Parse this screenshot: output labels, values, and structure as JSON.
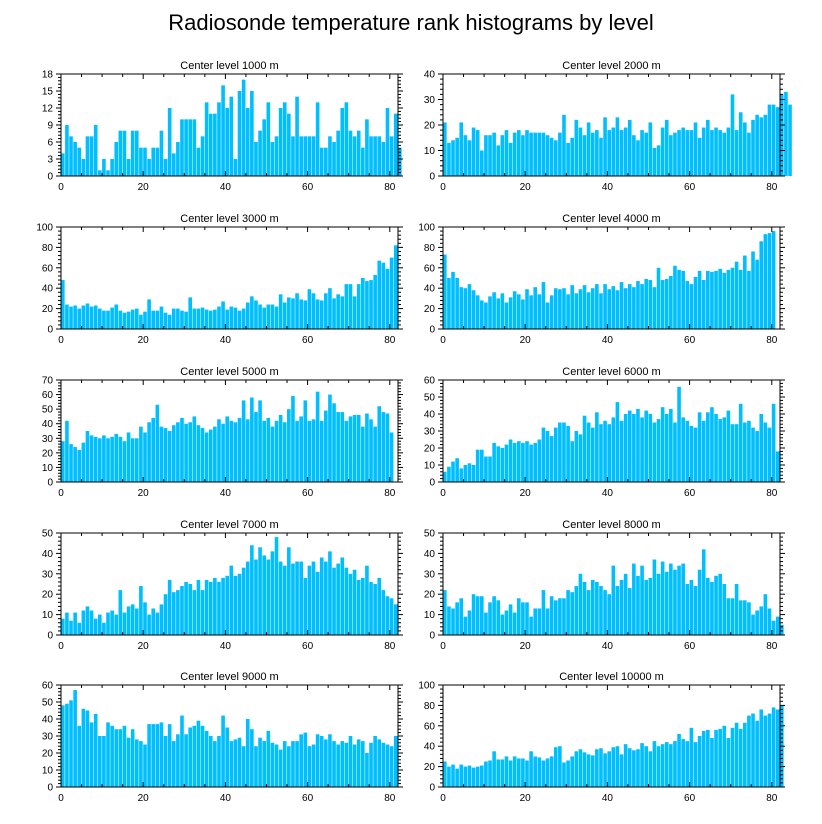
{
  "title": "Radiosonde temperature rank histograms by level",
  "bar_color": "#00BFFF",
  "chart_data": [
    {
      "type": "bar",
      "title": "Center level 1000 m",
      "xlim": [
        0,
        82
      ],
      "xticks": [
        0,
        20,
        40,
        60,
        80
      ],
      "ylim": [
        0,
        18
      ],
      "yticks": [
        0,
        3,
        6,
        9,
        12,
        15,
        18
      ],
      "values": [
        4,
        9,
        7,
        6,
        5,
        3,
        7,
        7,
        9,
        1,
        3,
        1,
        3,
        6,
        8,
        8,
        3,
        8,
        8,
        5,
        5,
        3,
        5,
        5,
        8,
        3,
        12,
        4,
        6,
        10,
        10,
        10,
        10,
        5,
        7,
        13,
        11,
        11,
        13,
        16,
        12,
        14,
        3,
        15,
        17,
        12,
        15,
        6,
        8,
        10,
        13,
        6,
        7,
        12,
        13,
        11,
        7,
        14,
        7,
        7,
        7,
        7,
        13,
        5,
        5,
        7,
        6,
        8,
        12,
        13,
        8,
        7,
        8,
        5,
        10,
        7,
        7,
        7,
        6,
        12,
        7,
        11,
        5
      ]
    },
    {
      "type": "bar",
      "title": "Center level 2000 m",
      "xlim": [
        0,
        82
      ],
      "xticks": [
        0,
        20,
        40,
        60,
        80
      ],
      "ylim": [
        0,
        40
      ],
      "yticks": [
        0,
        10,
        20,
        30,
        40
      ],
      "values": [
        21,
        13,
        14,
        15,
        21,
        16,
        14,
        19,
        18,
        10,
        16,
        16,
        17,
        12,
        16,
        18,
        13,
        17,
        18,
        16,
        18,
        17,
        17,
        17,
        17,
        16,
        15,
        14,
        17,
        24,
        13,
        15,
        22,
        19,
        16,
        21,
        17,
        18,
        15,
        23,
        18,
        19,
        23,
        18,
        19,
        22,
        16,
        14,
        18,
        17,
        21,
        11,
        12,
        19,
        22,
        16,
        17,
        18,
        19,
        18,
        18,
        21,
        15,
        19,
        22,
        18,
        19,
        18,
        17,
        19,
        32,
        18,
        25,
        21,
        17,
        22,
        24,
        23,
        24,
        28,
        28,
        27,
        32,
        33,
        28
      ]
    },
    {
      "type": "bar",
      "title": "Center level 3000 m",
      "xlim": [
        0,
        82
      ],
      "xticks": [
        0,
        20,
        40,
        60,
        80
      ],
      "ylim": [
        0,
        100
      ],
      "yticks": [
        0,
        20,
        40,
        60,
        80,
        100
      ],
      "values": [
        48,
        24,
        22,
        23,
        20,
        23,
        25,
        22,
        23,
        20,
        18,
        18,
        21,
        24,
        18,
        16,
        17,
        19,
        20,
        14,
        17,
        29,
        18,
        18,
        22,
        16,
        14,
        20,
        20,
        18,
        17,
        31,
        20,
        20,
        21,
        19,
        18,
        19,
        22,
        27,
        19,
        22,
        21,
        18,
        20,
        26,
        32,
        28,
        24,
        21,
        24,
        24,
        22,
        34,
        26,
        31,
        30,
        35,
        29,
        28,
        39,
        35,
        29,
        28,
        35,
        40,
        30,
        34,
        32,
        44,
        44,
        32,
        44,
        50,
        47,
        48,
        53,
        67,
        65,
        59,
        70,
        82
      ]
    },
    {
      "type": "bar",
      "title": "Center level 4000 m",
      "xlim": [
        0,
        82
      ],
      "xticks": [
        0,
        20,
        40,
        60,
        80
      ],
      "ylim": [
        0,
        100
      ],
      "yticks": [
        0,
        20,
        40,
        60,
        80,
        100
      ],
      "values": [
        73,
        50,
        56,
        50,
        41,
        40,
        44,
        38,
        33,
        28,
        26,
        32,
        36,
        30,
        35,
        26,
        31,
        37,
        34,
        29,
        39,
        33,
        41,
        34,
        46,
        26,
        33,
        40,
        39,
        40,
        34,
        43,
        35,
        39,
        43,
        36,
        40,
        44,
        35,
        44,
        39,
        42,
        38,
        46,
        40,
        44,
        41,
        47,
        44,
        49,
        48,
        41,
        60,
        48,
        49,
        52,
        62,
        58,
        57,
        47,
        44,
        51,
        57,
        48,
        57,
        56,
        57,
        59,
        55,
        58,
        60,
        66,
        58,
        72,
        57,
        76,
        68,
        86,
        93,
        94,
        96
      ]
    },
    {
      "type": "bar",
      "title": "Center level 5000 m",
      "xlim": [
        0,
        82
      ],
      "xticks": [
        0,
        20,
        40,
        60,
        80
      ],
      "ylim": [
        0,
        70
      ],
      "yticks": [
        0,
        10,
        20,
        30,
        40,
        50,
        60,
        70
      ],
      "values": [
        28,
        42,
        26,
        24,
        22,
        27,
        35,
        32,
        31,
        30,
        32,
        30,
        31,
        33,
        31,
        28,
        34,
        30,
        30,
        38,
        34,
        41,
        44,
        53,
        38,
        37,
        35,
        39,
        41,
        44,
        40,
        41,
        45,
        39,
        37,
        34,
        36,
        38,
        43,
        40,
        45,
        42,
        41,
        44,
        56,
        43,
        58,
        48,
        56,
        42,
        44,
        38,
        42,
        46,
        41,
        50,
        59,
        42,
        45,
        56,
        42,
        43,
        62,
        42,
        49,
        60,
        54,
        48,
        48,
        42,
        45,
        46,
        46,
        38,
        47,
        43,
        38,
        52,
        48,
        47,
        34
      ]
    },
    {
      "type": "bar",
      "title": "Center level 6000 m",
      "xlim": [
        0,
        82
      ],
      "xticks": [
        0,
        20,
        40,
        60,
        80
      ],
      "ylim": [
        0,
        60
      ],
      "yticks": [
        0,
        10,
        20,
        30,
        40,
        50,
        60
      ],
      "values": [
        6,
        9,
        12,
        14,
        8,
        10,
        11,
        10,
        19,
        19,
        15,
        15,
        23,
        21,
        20,
        22,
        25,
        23,
        24,
        23,
        24,
        22,
        23,
        25,
        32,
        30,
        27,
        32,
        35,
        35,
        33,
        24,
        30,
        28,
        39,
        35,
        32,
        41,
        34,
        36,
        34,
        38,
        47,
        36,
        40,
        42,
        40,
        43,
        38,
        42,
        40,
        35,
        37,
        44,
        40,
        43,
        35,
        56,
        38,
        36,
        33,
        32,
        41,
        36,
        41,
        44,
        40,
        37,
        38,
        42,
        34,
        34,
        46,
        35,
        36,
        32,
        30,
        40,
        35,
        32,
        46,
        18
      ]
    },
    {
      "type": "bar",
      "title": "Center level 7000 m",
      "xlim": [
        0,
        82
      ],
      "xticks": [
        0,
        20,
        40,
        60,
        80
      ],
      "ylim": [
        0,
        50
      ],
      "yticks": [
        0,
        10,
        20,
        30,
        40,
        50
      ],
      "values": [
        8,
        11,
        7,
        11,
        6,
        12,
        14,
        12,
        8,
        10,
        6,
        11,
        12,
        10,
        22,
        11,
        14,
        15,
        13,
        24,
        16,
        10,
        13,
        11,
        15,
        20,
        27,
        21,
        22,
        24,
        26,
        25,
        22,
        27,
        22,
        27,
        26,
        28,
        26,
        28,
        29,
        34,
        29,
        30,
        33,
        36,
        44,
        37,
        43,
        39,
        37,
        41,
        48,
        36,
        34,
        43,
        35,
        36,
        36,
        28,
        34,
        36,
        31,
        38,
        36,
        41,
        33,
        35,
        38,
        33,
        30,
        32,
        27,
        28,
        34,
        26,
        25,
        28,
        22,
        19,
        18,
        15
      ]
    },
    {
      "type": "bar",
      "title": "Center level 8000 m",
      "xlim": [
        0,
        82
      ],
      "xticks": [
        0,
        20,
        40,
        60,
        80
      ],
      "ylim": [
        0,
        50
      ],
      "yticks": [
        0,
        10,
        20,
        30,
        40,
        50
      ],
      "values": [
        22,
        14,
        13,
        16,
        18,
        9,
        12,
        20,
        19,
        19,
        11,
        16,
        19,
        17,
        10,
        12,
        15,
        11,
        18,
        16,
        16,
        9,
        13,
        13,
        22,
        13,
        19,
        17,
        18,
        18,
        22,
        21,
        24,
        30,
        26,
        22,
        27,
        26,
        24,
        22,
        20,
        34,
        24,
        27,
        30,
        23,
        35,
        29,
        34,
        27,
        28,
        37,
        30,
        36,
        31,
        35,
        32,
        34,
        35,
        25,
        27,
        24,
        32,
        42,
        28,
        26,
        29,
        30,
        25,
        18,
        18,
        25,
        17,
        17,
        16,
        10,
        12,
        14,
        20,
        13,
        7,
        9,
        5
      ]
    },
    {
      "type": "bar",
      "title": "Center level 9000 m",
      "xlim": [
        0,
        82
      ],
      "xticks": [
        0,
        20,
        40,
        60,
        80
      ],
      "ylim": [
        0,
        60
      ],
      "yticks": [
        0,
        10,
        20,
        30,
        40,
        50,
        60
      ],
      "values": [
        48,
        49,
        51,
        57,
        36,
        46,
        45,
        38,
        43,
        30,
        30,
        38,
        36,
        34,
        34,
        36,
        29,
        34,
        28,
        27,
        25,
        37,
        37,
        37,
        38,
        30,
        37,
        27,
        31,
        42,
        31,
        35,
        36,
        39,
        36,
        33,
        30,
        27,
        30,
        42,
        35,
        27,
        28,
        29,
        24,
        40,
        34,
        24,
        29,
        27,
        33,
        26,
        25,
        22,
        27,
        24,
        27,
        27,
        31,
        32,
        24,
        25,
        31,
        30,
        28,
        31,
        27,
        25,
        27,
        26,
        30,
        25,
        28,
        27,
        20,
        26,
        30,
        28,
        26,
        25,
        24,
        30
      ]
    },
    {
      "type": "bar",
      "title": "Center level 10000 m",
      "xlim": [
        0,
        82
      ],
      "xticks": [
        0,
        20,
        40,
        60,
        80
      ],
      "ylim": [
        0,
        100
      ],
      "yticks": [
        0,
        20,
        40,
        60,
        80,
        100
      ],
      "values": [
        25,
        20,
        22,
        18,
        22,
        20,
        21,
        19,
        20,
        21,
        25,
        26,
        35,
        27,
        27,
        30,
        26,
        30,
        28,
        28,
        26,
        35,
        30,
        29,
        26,
        28,
        30,
        39,
        40,
        24,
        26,
        30,
        35,
        37,
        34,
        32,
        31,
        37,
        38,
        33,
        35,
        39,
        40,
        32,
        42,
        38,
        36,
        37,
        43,
        40,
        35,
        45,
        40,
        42,
        44,
        42,
        45,
        52,
        47,
        45,
        58,
        44,
        50,
        55,
        56,
        48,
        56,
        57,
        60,
        48,
        58,
        63,
        57,
        63,
        70,
        72,
        65,
        76,
        70,
        72,
        78,
        76,
        80
      ]
    }
  ]
}
